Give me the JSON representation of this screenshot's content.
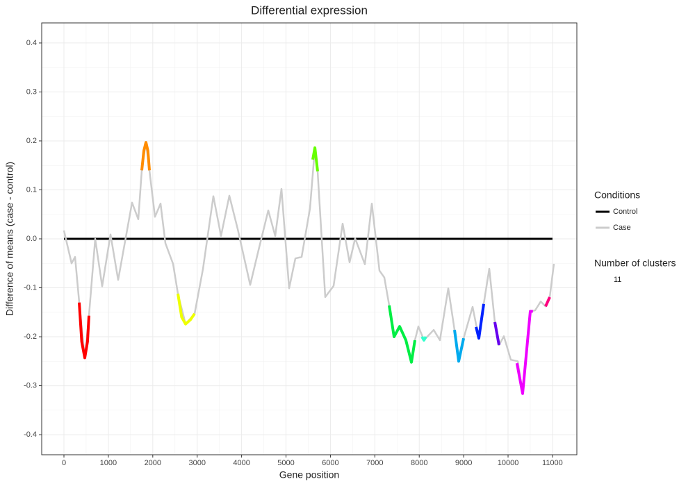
{
  "chart_data": {
    "type": "line",
    "title": "Differential expression",
    "x_label": "Gene position",
    "y_label": "Difference of means (case - control)",
    "xlim": [
      -501,
      11549
    ],
    "ylim": [
      -0.441,
      0.441
    ],
    "xticks": [
      0,
      1000,
      2000,
      3000,
      4000,
      5000,
      6000,
      7000,
      8000,
      9000,
      10000,
      11000
    ],
    "yticks": [
      -0.4,
      -0.3,
      -0.2,
      -0.1,
      {
        "value": 0,
        "label": "0.0"
      },
      0.1,
      0.2,
      0.3,
      0.4
    ],
    "grid": true,
    "legend_title": "Conditions",
    "series": [
      {
        "name": "Control",
        "color": "#000000",
        "x": [
          0,
          11000
        ],
        "values": [
          0,
          0
        ]
      },
      {
        "name": "Case",
        "color": "#cccccc",
        "x": [
          0,
          172,
          250,
          344,
          470,
          563,
          704,
          861,
          1049,
          1221,
          1534,
          1675,
          1753,
          1847,
          1925,
          2050,
          2175,
          2285,
          2457,
          2566,
          2739,
          2942,
          3130,
          3365,
          3537,
          3725,
          3912,
          4194,
          4382,
          4601,
          4757,
          4898,
          5070,
          5211,
          5352,
          5540,
          5650,
          5712,
          5884,
          6072,
          6275,
          6432,
          6557,
          6776,
          6933,
          7105,
          7214,
          7324,
          7433,
          7559,
          7700,
          7825,
          7903,
          7981,
          8106,
          8326,
          8466,
          8654,
          8795,
          8889,
          8999,
          9202,
          9343,
          9452,
          9577,
          9703,
          9796,
          9906,
          10063,
          10219,
          10329,
          10501,
          10610,
          10736,
          10845,
          10939,
          11033
        ],
        "values": [
          0.017,
          -0.05,
          -0.037,
          -0.13,
          -0.243,
          -0.157,
          0.0,
          -0.097,
          0.009,
          -0.084,
          0.074,
          0.04,
          0.14,
          0.197,
          0.14,
          0.045,
          0.072,
          -0.009,
          -0.051,
          -0.112,
          -0.174,
          -0.153,
          -0.062,
          0.087,
          0.006,
          0.088,
          0.02,
          -0.094,
          -0.023,
          0.058,
          0.006,
          0.102,
          -0.101,
          -0.04,
          -0.037,
          0.062,
          0.186,
          0.138,
          -0.119,
          -0.096,
          0.031,
          -0.048,
          0.001,
          -0.052,
          0.072,
          -0.065,
          -0.079,
          -0.136,
          -0.2,
          -0.179,
          -0.207,
          -0.252,
          -0.207,
          -0.179,
          -0.207,
          -0.186,
          -0.207,
          -0.101,
          -0.186,
          -0.25,
          -0.203,
          -0.139,
          -0.203,
          -0.133,
          -0.061,
          -0.17,
          -0.217,
          -0.199,
          -0.247,
          -0.25,
          -0.316,
          -0.148,
          -0.146,
          -0.128,
          -0.138,
          -0.119,
          -0.051
        ]
      }
    ],
    "clusters_title": "Number of clusters",
    "clusters_count": 11,
    "clusters": [
      {
        "color": "#ff0000",
        "x": [
          344,
          400,
          470,
          530,
          563
        ],
        "values": [
          -0.13,
          -0.21,
          -0.243,
          -0.21,
          -0.157
        ]
      },
      {
        "color": "#ff8c00",
        "x": [
          1753,
          1800,
          1847,
          1890,
          1925
        ],
        "values": [
          0.14,
          0.18,
          0.197,
          0.18,
          0.14
        ]
      },
      {
        "color": "#eeff00",
        "x": [
          2566,
          2650,
          2739,
          2850,
          2942
        ],
        "values": [
          -0.112,
          -0.16,
          -0.174,
          -0.165,
          -0.153
        ]
      },
      {
        "color": "#66ff00",
        "x": [
          5603,
          5650,
          5712
        ],
        "values": [
          0.162,
          0.186,
          0.138
        ]
      },
      {
        "color": "#00ee44",
        "x": [
          7324,
          7433,
          7559,
          7700,
          7825,
          7903
        ],
        "values": [
          -0.136,
          -0.2,
          -0.179,
          -0.207,
          -0.252,
          -0.207
        ]
      },
      {
        "color": "#33ffcc",
        "x": [
          8060,
          8106,
          8150
        ],
        "values": [
          -0.2,
          -0.207,
          -0.2
        ]
      },
      {
        "color": "#00aaee",
        "x": [
          8795,
          8889,
          8999
        ],
        "values": [
          -0.186,
          -0.25,
          -0.203
        ]
      },
      {
        "color": "#0022ff",
        "x": [
          9280,
          9343,
          9452
        ],
        "values": [
          -0.18,
          -0.203,
          -0.133
        ]
      },
      {
        "color": "#6600ee",
        "x": [
          9703,
          9796
        ],
        "values": [
          -0.17,
          -0.217
        ]
      },
      {
        "color": "#ee00ff",
        "x": [
          10200,
          10329,
          10501,
          10560
        ],
        "values": [
          -0.254,
          -0.316,
          -0.148,
          -0.148
        ]
      },
      {
        "color": "#ff0080",
        "x": [
          10845,
          10939
        ],
        "values": [
          -0.138,
          -0.119
        ]
      }
    ]
  }
}
